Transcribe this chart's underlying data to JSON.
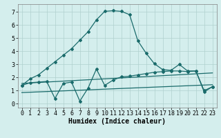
{
  "bg_color": "#d4eeed",
  "grid_color": "#b0d0ce",
  "line_color": "#1a6b6b",
  "line_width": 0.9,
  "marker": "D",
  "marker_size": 2.0,
  "xlim": [
    -0.5,
    23.5
  ],
  "ylim": [
    -0.3,
    7.6
  ],
  "xlabel": "Humidex (Indice chaleur)",
  "xlabel_fontsize": 7,
  "xticks": [
    0,
    1,
    2,
    3,
    4,
    5,
    6,
    7,
    8,
    9,
    10,
    11,
    12,
    13,
    14,
    15,
    16,
    17,
    18,
    19,
    20,
    21,
    22,
    23
  ],
  "yticks": [
    0,
    1,
    2,
    3,
    4,
    5,
    6,
    7
  ],
  "tick_fontsize": 6,
  "main_curve_x": [
    0,
    1,
    2,
    3,
    4,
    5,
    6,
    7,
    8,
    9,
    10,
    11,
    12,
    13,
    14,
    15,
    16,
    17,
    18,
    19,
    20,
    21,
    22,
    23
  ],
  "main_curve_y": [
    1.4,
    1.9,
    2.2,
    2.7,
    3.2,
    3.7,
    4.2,
    4.85,
    5.5,
    6.4,
    7.05,
    7.1,
    7.05,
    6.8,
    4.8,
    3.85,
    3.05,
    2.6,
    2.55,
    3.0,
    2.5,
    2.5,
    1.0,
    1.3
  ],
  "volatile_curve_x": [
    0,
    1,
    2,
    3,
    4,
    5,
    6,
    7,
    8,
    9,
    10,
    11,
    12,
    13,
    14,
    15,
    16,
    17,
    18,
    19,
    20,
    21,
    22,
    23
  ],
  "volatile_curve_y": [
    1.4,
    1.6,
    1.65,
    1.7,
    0.4,
    1.55,
    1.65,
    0.2,
    1.2,
    2.65,
    1.4,
    1.8,
    2.05,
    2.1,
    2.2,
    2.3,
    2.4,
    2.45,
    2.5,
    2.5,
    2.45,
    2.5,
    0.9,
    1.3
  ],
  "flat_line1_x": [
    0,
    23
  ],
  "flat_line1_y": [
    1.55,
    2.35
  ],
  "flat_line2_x": [
    0,
    23
  ],
  "flat_line2_y": [
    0.85,
    1.45
  ]
}
